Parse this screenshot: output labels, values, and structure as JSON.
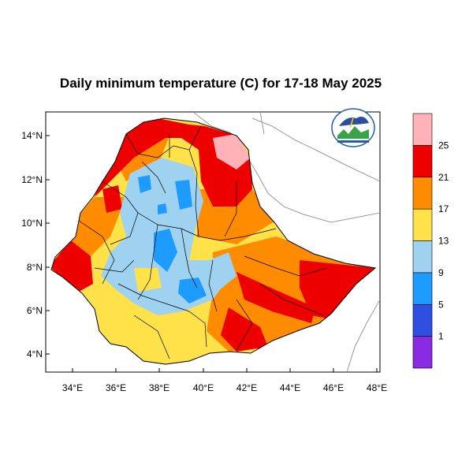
{
  "title": "Daily minimum temperature (C) for 17-18 May 2025",
  "map": {
    "lat_ticks": [
      "4°N",
      "6°N",
      "8°N",
      "10°N",
      "12°N",
      "14°N"
    ],
    "lon_ticks": [
      "34°E",
      "36°E",
      "38°E",
      "40°E",
      "42°E",
      "44°E",
      "46°E",
      "48°E"
    ]
  },
  "legend": {
    "levels": [
      "1",
      "5",
      "9",
      "13",
      "17",
      "21",
      "25"
    ],
    "colors": [
      "#8a2be2",
      "#2f4fe0",
      "#1e9bff",
      "#9ed2f0",
      "#ffe14a",
      "#ff8c00",
      "#ee0000",
      "#ffb3b8"
    ]
  },
  "logo": {
    "icon": "meteorology-agency-logo"
  }
}
